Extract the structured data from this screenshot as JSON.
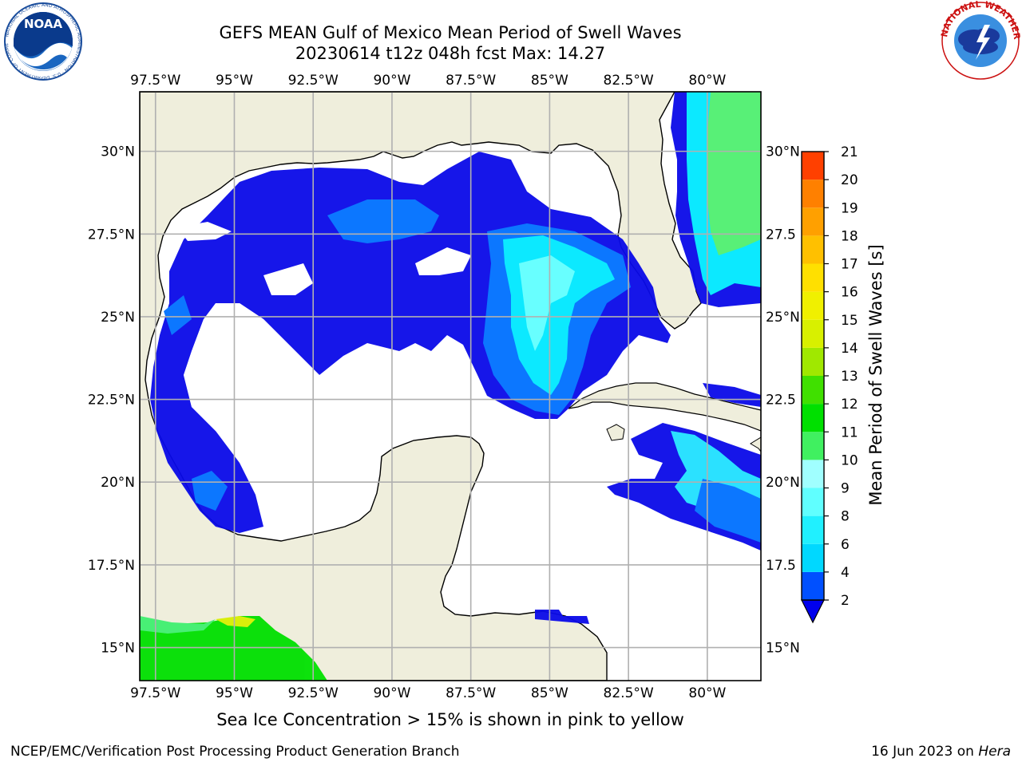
{
  "title": {
    "line1": "GEFS MEAN Gulf of Mexico Mean Period of Swell Waves",
    "line2": "20230614 t12z 048h fcst   Max: 14.27"
  },
  "logos": {
    "left": "NOAA",
    "left_ring": "NATIONAL OCEANIC AND ATMOSPHERIC ADMINISTRATION · U.S. DEPARTMENT OF COMMERCE",
    "right_ring": "NATIONAL WEATHER SERVICE"
  },
  "map": {
    "lon_labels": [
      "97.5°W",
      "95°W",
      "92.5°W",
      "90°W",
      "87.5°W",
      "85°W",
      "82.5°W",
      "80°W"
    ],
    "lat_labels_left": [
      "30°N",
      "27.5°N",
      "25°N",
      "22.5°N",
      "20°N",
      "17.5°N",
      "15°N"
    ],
    "lat_labels_right": [
      "30°N",
      "27.5",
      "25°N",
      "22.5",
      "20°N",
      "17.5",
      "15°N"
    ],
    "lon_values": [
      -97.5,
      -95,
      -92.5,
      -90,
      -87.5,
      -85,
      -82.5,
      -80
    ],
    "lat_values": [
      30,
      27.5,
      25,
      22.5,
      20,
      17.5,
      15
    ],
    "extent": {
      "lon_min": -98,
      "lon_max": -78.3,
      "lat_min": 14,
      "lat_max": 31.8
    },
    "land_color": "#efeedc",
    "ocean_color": "#ffffff"
  },
  "colorbar": {
    "label": "Mean Period of Swell Waves [s]",
    "ticks": [
      "2",
      "4",
      "6",
      "8",
      "9",
      "10",
      "11",
      "12",
      "13",
      "14",
      "15",
      "16",
      "17",
      "18",
      "19",
      "20",
      "21"
    ],
    "colors": [
      "#0050ff",
      "#00d8ff",
      "#20f0ff",
      "#60ffff",
      "#a0ffff",
      "#40f060",
      "#00e000",
      "#40e000",
      "#a0e800",
      "#d8f000",
      "#f0f000",
      "#ffe000",
      "#ffc000",
      "#ffa000",
      "#ff8000",
      "#ff4000",
      "#ff0000"
    ],
    "extend_color": "#0000ee"
  },
  "caption": "Sea Ice Concentration > 15% is shown in pink to yellow",
  "footer": {
    "left": "NCEP/EMC/Verification Post Processing Product Generation Branch",
    "right_prefix": "16 Jun 2023 on ",
    "right_italic": "Hera"
  }
}
